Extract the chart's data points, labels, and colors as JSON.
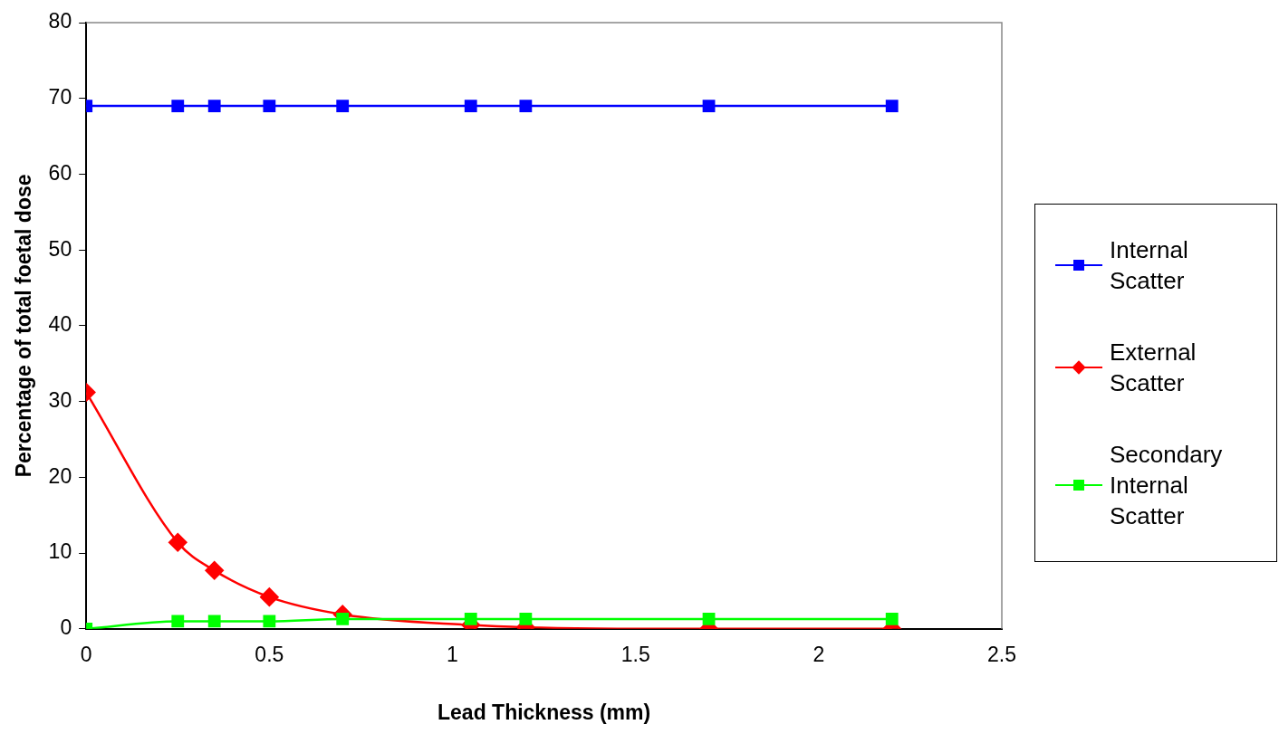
{
  "chart_data": {
    "type": "line",
    "xlabel": "Lead Thickness (mm)",
    "ylabel": "Percentage of total foetal dose",
    "x": [
      0,
      0.25,
      0.35,
      0.5,
      0.7,
      1.05,
      1.2,
      1.7,
      2.2
    ],
    "series": [
      {
        "name": "Internal Scatter",
        "color": "#0000ff",
        "marker": "square",
        "values": [
          69,
          69,
          69,
          69,
          69,
          69,
          69,
          69,
          69
        ]
      },
      {
        "name": "External Scatter",
        "color": "#ff0000",
        "marker": "diamond",
        "values": [
          31.2,
          11.4,
          7.7,
          4.2,
          1.9,
          0.5,
          0.2,
          0,
          0
        ]
      },
      {
        "name": "Secondary Internal Scatter",
        "color": "#00ff00",
        "marker": "square",
        "values": [
          0,
          1,
          1,
          1,
          1.3,
          1.3,
          1.3,
          1.3,
          1.3
        ]
      }
    ],
    "xlim": [
      0,
      2.5
    ],
    "xticks": [
      0,
      0.5,
      1,
      1.5,
      2,
      2.5
    ],
    "ylim": [
      0,
      80
    ],
    "yticks": [
      0,
      10,
      20,
      30,
      40,
      50,
      60,
      70,
      80
    ],
    "grid": false,
    "legend": "right"
  }
}
